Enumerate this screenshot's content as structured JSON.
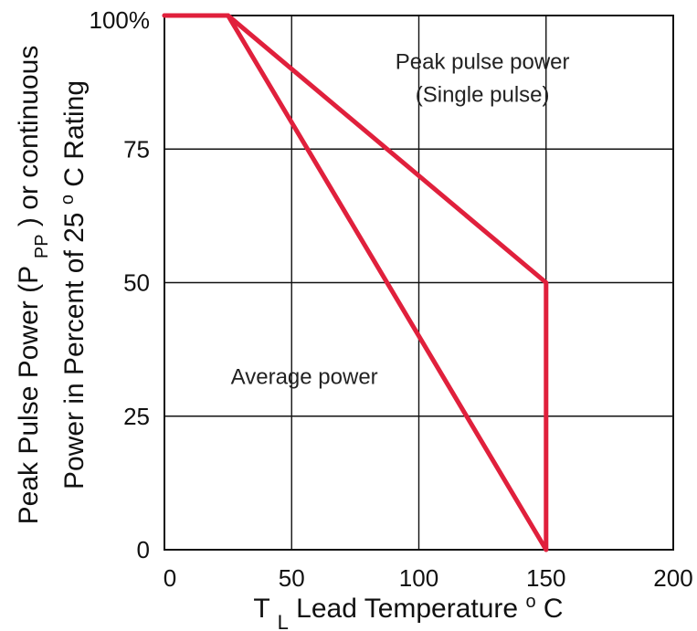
{
  "chart_data": {
    "type": "line",
    "title": "",
    "xlabel": {
      "prefix": "T",
      "sub": "L",
      "text": " Lead Temperature ",
      "sup": "o",
      "suffix": "C"
    },
    "ylabel": {
      "line1_prefix": "Peak Pulse Power (P",
      "line1_sub": "PP",
      "line1_suffix": ") or continuous",
      "line2_prefix": "Power in Percent of 25 ",
      "line2_sup": "o",
      "line2_suffix": "C Rating"
    },
    "xlim": [
      0,
      200
    ],
    "ylim": [
      0,
      100
    ],
    "x_ticks": [
      0,
      50,
      100,
      150,
      200
    ],
    "x_tick_labels": [
      "0",
      "50",
      "100",
      "150",
      "200"
    ],
    "y_ticks": [
      0,
      25,
      50,
      75,
      100
    ],
    "y_tick_labels": [
      "0",
      "25",
      "50",
      "75",
      "100%"
    ],
    "grid": true,
    "series": [
      {
        "name": "Peak pulse power (Single pulse)",
        "color": "#e0203c",
        "x": [
          0,
          25,
          150,
          150
        ],
        "y": [
          100,
          100,
          50,
          0
        ]
      },
      {
        "name": "Average power",
        "color": "#e0203c",
        "x": [
          0,
          25,
          150
        ],
        "y": [
          100,
          100,
          0
        ]
      }
    ],
    "annotations": [
      {
        "lines": [
          "Peak pulse power",
          "(Single pulse)"
        ],
        "x": 125,
        "y": 90
      },
      {
        "lines": [
          "Average power"
        ],
        "x": 55,
        "y": 31
      }
    ]
  }
}
